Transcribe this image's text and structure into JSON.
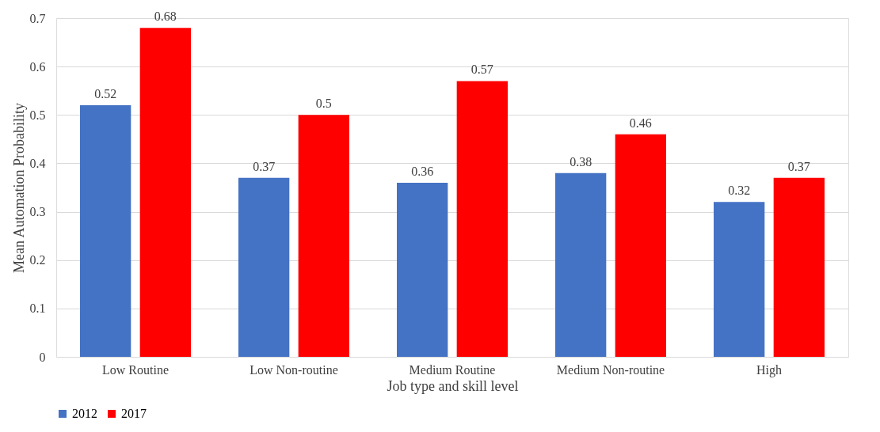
{
  "chart_data": {
    "type": "bar",
    "xlabel": "Job type and skill level",
    "ylabel": "Mean Automation Probability",
    "categories": [
      "Low Routine",
      "Low Non-routine",
      "Medium Routine",
      "Medium Non-routine",
      "High"
    ],
    "series": [
      {
        "name": "2012",
        "color": "#4472c4",
        "values": [
          0.52,
          0.37,
          0.36,
          0.38,
          0.32
        ]
      },
      {
        "name": "2017",
        "color": "#ff0000",
        "values": [
          0.68,
          0.5,
          0.57,
          0.46,
          0.37
        ]
      }
    ],
    "ylim": [
      0,
      0.7
    ],
    "yticks": [
      0,
      0.1,
      0.2,
      0.3,
      0.4,
      0.5,
      0.6,
      0.7
    ],
    "grid": "y",
    "legend": "bottom",
    "data_labels": true
  }
}
